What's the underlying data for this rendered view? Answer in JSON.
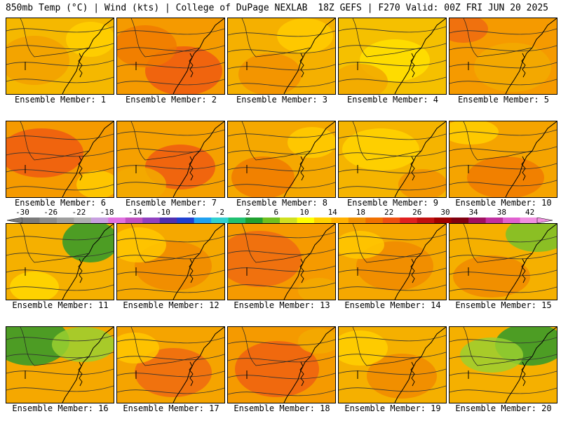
{
  "header": {
    "left": "850mb Temp (°C) | Wind (kts) | College of DuPage NEXLAB",
    "right": "18Z GEFS | F270 Valid: 00Z FRI JUN 20 2025"
  },
  "members": [
    {
      "label": "Ensemble Member: 1",
      "base": "#f5b800",
      "blobs": [
        {
          "c": "#f2a000"
        },
        {
          "c": "#ffd000"
        }
      ]
    },
    {
      "label": "Ensemble Member: 2",
      "base": "#f59a00",
      "blobs": [
        {
          "c": "#ee5a10"
        },
        {
          "c": "#f07a00"
        }
      ]
    },
    {
      "label": "Ensemble Member: 3",
      "base": "#f5b000",
      "blobs": [
        {
          "c": "#f29000"
        },
        {
          "c": "#ffcc00"
        }
      ]
    },
    {
      "label": "Ensemble Member: 4",
      "base": "#f5c000",
      "blobs": [
        {
          "c": "#ffe000"
        },
        {
          "c": "#f2a800"
        }
      ]
    },
    {
      "label": "Ensemble Member: 5",
      "base": "#f59a00",
      "blobs": [
        {
          "c": "#ee6a10"
        },
        {
          "c": "#f2aa00"
        }
      ]
    },
    {
      "label": "Ensemble Member: 6",
      "base": "#f59a00",
      "blobs": [
        {
          "c": "#ee5a10"
        },
        {
          "c": "#ffcc00"
        }
      ]
    },
    {
      "label": "Ensemble Member: 7",
      "base": "#f5a000",
      "blobs": [
        {
          "c": "#ee5a10"
        },
        {
          "c": "#f2aa00"
        }
      ]
    },
    {
      "label": "Ensemble Member: 8",
      "base": "#f5a800",
      "blobs": [
        {
          "c": "#f07a00"
        },
        {
          "c": "#ffcc00"
        }
      ]
    },
    {
      "label": "Ensemble Member: 9",
      "base": "#f5b400",
      "blobs": [
        {
          "c": "#ffd400"
        },
        {
          "c": "#f29000"
        }
      ]
    },
    {
      "label": "Ensemble Member: 10",
      "base": "#f5a400",
      "blobs": [
        {
          "c": "#ffd000"
        },
        {
          "c": "#f07a00"
        }
      ]
    },
    {
      "label": "Ensemble Member: 11",
      "base": "#f5b000",
      "blobs": [
        {
          "c": "#2f9a2a"
        },
        {
          "c": "#ffd800"
        }
      ]
    },
    {
      "label": "Ensemble Member: 12",
      "base": "#f5a800",
      "blobs": [
        {
          "c": "#f08a00"
        },
        {
          "c": "#ffc800"
        }
      ]
    },
    {
      "label": "Ensemble Member: 13",
      "base": "#f59a00",
      "blobs": [
        {
          "c": "#ee6a10"
        },
        {
          "c": "#f2aa00"
        }
      ]
    },
    {
      "label": "Ensemble Member: 14",
      "base": "#f5a800",
      "blobs": [
        {
          "c": "#f08a00"
        },
        {
          "c": "#ffc800"
        }
      ]
    },
    {
      "label": "Ensemble Member: 15",
      "base": "#f5b000",
      "blobs": [
        {
          "c": "#78c22a"
        },
        {
          "c": "#f08a00"
        }
      ]
    },
    {
      "label": "Ensemble Member: 16",
      "base": "#f5a800",
      "blobs": [
        {
          "c": "#2f9a2a"
        },
        {
          "c": "#9ad030"
        }
      ]
    },
    {
      "label": "Ensemble Member: 17",
      "base": "#f5a400",
      "blobs": [
        {
          "c": "#ee6a10"
        },
        {
          "c": "#ffc800"
        }
      ]
    },
    {
      "label": "Ensemble Member: 18",
      "base": "#f59a00",
      "blobs": [
        {
          "c": "#ee6010"
        },
        {
          "c": "#f2aa00"
        }
      ]
    },
    {
      "label": "Ensemble Member: 19",
      "base": "#f5b000",
      "blobs": [
        {
          "c": "#f08a00"
        },
        {
          "c": "#ffd000"
        }
      ]
    },
    {
      "label": "Ensemble Member: 20",
      "base": "#f5b000",
      "blobs": [
        {
          "c": "#2f9a2a"
        },
        {
          "c": "#9ad030"
        }
      ]
    }
  ],
  "colorbar": {
    "labels": [
      "-30",
      "-26",
      "-22",
      "-18",
      "-14",
      "-10",
      "-6",
      "-2",
      "2",
      "6",
      "10",
      "14",
      "18",
      "22",
      "26",
      "30",
      "34",
      "38",
      "42"
    ],
    "colors": [
      "#7a7a7a",
      "#8c8c8c",
      "#9e9e9e",
      "#b0b0b0",
      "#c8a0e0",
      "#e070e0",
      "#c050c0",
      "#9040c0",
      "#5030b0",
      "#2040d0",
      "#20a0f0",
      "#30d0d0",
      "#20c070",
      "#20a030",
      "#70c020",
      "#d0e020",
      "#ffff00",
      "#ffd000",
      "#ffb000",
      "#f09000",
      "#f07000",
      "#ee5010",
      "#e02020",
      "#c01010",
      "#a00000",
      "#800010",
      "#a01060",
      "#c030a0",
      "#e060d0",
      "#f090e0"
    ]
  }
}
